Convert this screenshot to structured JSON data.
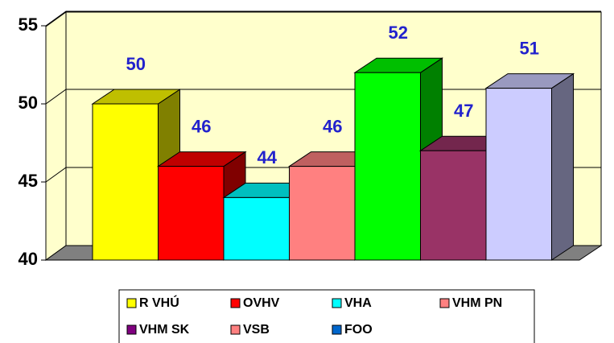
{
  "chart_data": {
    "type": "bar3d",
    "values": [
      50,
      46,
      44,
      46,
      52,
      47,
      51
    ],
    "colors": [
      "#ffff00",
      "#ff0000",
      "#00ffff",
      "#ff8080",
      "#00ff00",
      "#993366",
      "#ccccff"
    ],
    "ylim": [
      40,
      55
    ],
    "yticks": [
      40,
      45,
      50,
      55
    ],
    "grid": true,
    "series": [
      {
        "name": "R VHÚ",
        "color": "#ffff00"
      },
      {
        "name": "OVHV",
        "color": "#ff0000"
      },
      {
        "name": "VHA",
        "color": "#00ffff"
      },
      {
        "name": "VHM PN",
        "color": "#ff8080"
      },
      {
        "name": "VHM SK",
        "color": "#800080"
      },
      {
        "name": "VSB",
        "color": "#ff8080"
      },
      {
        "name": "FOO",
        "color": "#0066cc"
      }
    ]
  }
}
